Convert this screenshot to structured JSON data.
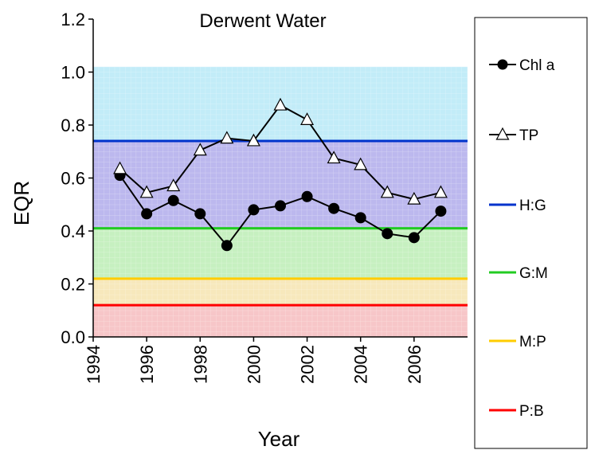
{
  "chart_data": {
    "type": "line",
    "title": "Derwent Water",
    "x_label": "Year",
    "y_label": "EQR",
    "x": [
      1995,
      1996,
      1997,
      1998,
      1999,
      2000,
      2001,
      2002,
      2003,
      2004,
      2005,
      2006,
      2007
    ],
    "series": [
      {
        "name": "Chl a",
        "color": "#000000",
        "marker": "circle",
        "values": [
          0.61,
          0.465,
          0.515,
          0.465,
          0.345,
          0.48,
          0.495,
          0.53,
          0.485,
          0.45,
          0.39,
          0.375,
          0.475
        ]
      },
      {
        "name": "TP",
        "color": "#000000",
        "marker": "triangle",
        "values": [
          0.635,
          0.545,
          0.57,
          0.705,
          0.75,
          0.74,
          0.875,
          0.82,
          0.675,
          0.65,
          0.545,
          0.52,
          0.545
        ]
      },
      {
        "name": "H:G",
        "color": "#0033cc",
        "value": 0.74,
        "band_color": "#bcb8ee"
      },
      {
        "name": "G:M",
        "color": "#22cc22",
        "value": 0.41,
        "band_color": "#c6f0c0"
      },
      {
        "name": "M:P",
        "color": "#ffcc00",
        "value": 0.22,
        "band_color": "#f7e8bc"
      },
      {
        "name": "P:B",
        "color": "#ff0000",
        "value": 0.12,
        "band_color": "#f7c6c8"
      }
    ],
    "top_band_color": "#c2ecf8",
    "shading_top": 1.02,
    "xlim": [
      1994,
      2008
    ],
    "xticks": [
      1994,
      1996,
      1998,
      2000,
      2002,
      2004,
      2006
    ],
    "ylim": [
      0,
      1.2
    ],
    "yticks": [
      {
        "value": 0,
        "label": "0.0"
      },
      0.2,
      0.4,
      0.6,
      0.8,
      {
        "value": 1,
        "label": "1.0"
      },
      1.2
    ],
    "legend": "right"
  }
}
